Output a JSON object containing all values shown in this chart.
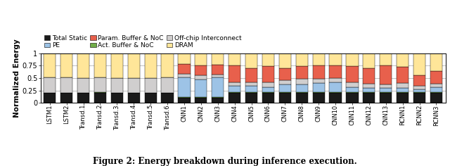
{
  "categories": [
    "LSTM1",
    "LSTM2",
    "Transd.1",
    "Transd.2",
    "Transd.3",
    "Transd.4",
    "Transd.5",
    "Transd.6",
    "CNN1",
    "CNN2",
    "CNN3",
    "CNN4",
    "CNN5",
    "CNN6",
    "CNN7",
    "CNN8",
    "CNN9",
    "CNN10",
    "CNN11",
    "CNN12",
    "CNN13",
    "RCNN1",
    "RCNN2",
    "RCNN3"
  ],
  "series": {
    "Total Static": [
      0.2,
      0.2,
      0.2,
      0.2,
      0.2,
      0.2,
      0.2,
      0.2,
      0.1,
      0.1,
      0.1,
      0.2,
      0.2,
      0.2,
      0.2,
      0.2,
      0.2,
      0.2,
      0.2,
      0.2,
      0.2,
      0.2,
      0.2,
      0.2
    ],
    "Act. Buffer & NoC": [
      0.0,
      0.0,
      0.0,
      0.02,
      0.0,
      0.0,
      0.0,
      0.0,
      0.02,
      0.02,
      0.02,
      0.02,
      0.02,
      0.02,
      0.02,
      0.02,
      0.02,
      0.02,
      0.02,
      0.02,
      0.02,
      0.02,
      0.02,
      0.02
    ],
    "PE": [
      0.0,
      0.0,
      0.0,
      0.0,
      0.0,
      0.0,
      0.0,
      0.0,
      0.4,
      0.35,
      0.4,
      0.12,
      0.12,
      0.1,
      0.15,
      0.15,
      0.18,
      0.2,
      0.1,
      0.08,
      0.08,
      0.08,
      0.05,
      0.1
    ],
    "Off-chip Interconnect": [
      0.32,
      0.32,
      0.3,
      0.3,
      0.3,
      0.3,
      0.3,
      0.32,
      0.06,
      0.08,
      0.05,
      0.08,
      0.08,
      0.1,
      0.08,
      0.12,
      0.08,
      0.08,
      0.1,
      0.08,
      0.07,
      0.1,
      0.08,
      0.07
    ],
    "Param. Buffer & NoC": [
      0.0,
      0.0,
      0.0,
      0.0,
      0.0,
      0.0,
      0.0,
      0.0,
      0.2,
      0.2,
      0.2,
      0.33,
      0.28,
      0.32,
      0.25,
      0.25,
      0.27,
      0.25,
      0.32,
      0.32,
      0.38,
      0.33,
      0.2,
      0.25
    ],
    "DRAM": [
      0.48,
      0.48,
      0.5,
      0.48,
      0.5,
      0.5,
      0.5,
      0.48,
      0.22,
      0.25,
      0.23,
      0.25,
      0.3,
      0.26,
      0.3,
      0.26,
      0.25,
      0.25,
      0.26,
      0.3,
      0.25,
      0.27,
      0.45,
      0.36
    ]
  },
  "colors": {
    "Total Static": "#1a1a1a",
    "Act. Buffer & NoC": "#70ad47",
    "PE": "#9dc3e6",
    "Off-chip Interconnect": "#d0cece",
    "Param. Buffer & NoC": "#e8604c",
    "DRAM": "#ffe699"
  },
  "ylabel": "Normalized Energy",
  "ylim": [
    0,
    1
  ],
  "yticks": [
    0,
    0.25,
    0.5,
    0.75,
    1
  ],
  "ytick_labels": [
    "0",
    "0.25",
    "0.5",
    "0.75",
    "1"
  ],
  "legend_order": [
    "Total Static",
    "PE",
    "Param. Buffer & NoC",
    "Act. Buffer & NoC",
    "Off-chip Interconnect",
    "DRAM"
  ],
  "caption": "Figure 2: Energy breakdown during inference execution.",
  "background_color": "#ffffff"
}
